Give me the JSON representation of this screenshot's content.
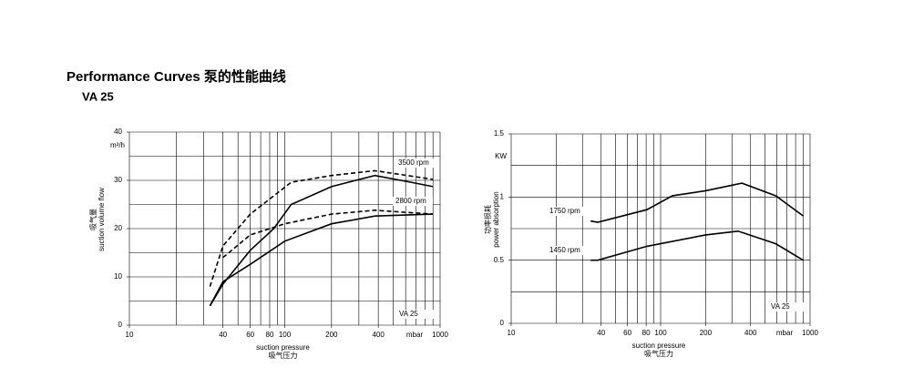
{
  "header": {
    "title": "Performance Curves 泵的性能曲线",
    "model": "VA 25"
  },
  "chart_data": [
    {
      "type": "line",
      "xlog": true,
      "grid": true,
      "color": "#000000",
      "xlim": [
        10,
        1000
      ],
      "ylim": [
        0,
        40
      ],
      "xticks": [
        10,
        40,
        60,
        80,
        100,
        200,
        400,
        1000
      ],
      "yticks": [
        0,
        10,
        20,
        30,
        40
      ],
      "xgrid": [
        10,
        20,
        30,
        40,
        50,
        60,
        70,
        80,
        90,
        100,
        200,
        300,
        400,
        500,
        600,
        700,
        800,
        900,
        1000
      ],
      "ygrid": [
        0,
        5,
        10,
        15,
        20,
        25,
        30,
        35,
        40
      ],
      "x_unit": "mbar",
      "y_unit": "m³/h",
      "xlabel": [
        "suction pressure",
        "吸气压力"
      ],
      "ylabel": [
        "吸气量",
        "suction volume flow"
      ],
      "annotations": [
        "3500 rpm",
        "2800 rpm",
        "VA 25"
      ],
      "series": [
        {
          "dash": false,
          "x": [
            33,
            40,
            60,
            85,
            110,
            200,
            380,
            650,
            900
          ],
          "values": [
            4,
            8.5,
            15.5,
            20,
            25,
            28.7,
            31,
            29.6,
            28.7
          ]
        },
        {
          "dash": true,
          "x": [
            33,
            40,
            60,
            110,
            200,
            380,
            900
          ],
          "values": [
            8,
            16.4,
            23,
            29.6,
            31,
            32,
            30.2
          ]
        },
        {
          "dash": false,
          "x": [
            33,
            40,
            60,
            100,
            200,
            380,
            900
          ],
          "values": [
            4,
            9,
            12.6,
            17.4,
            21,
            22.6,
            23
          ]
        },
        {
          "dash": true,
          "x": [
            40,
            60,
            100,
            200,
            380,
            900
          ],
          "values": [
            14,
            18.7,
            21,
            23,
            23.8,
            23
          ]
        }
      ]
    },
    {
      "type": "line",
      "xlog": true,
      "grid": true,
      "color": "#000000",
      "xlim": [
        10,
        1000
      ],
      "ylim": [
        0,
        1.5
      ],
      "xticks": [
        10,
        40,
        60,
        80,
        100,
        200,
        400,
        1000
      ],
      "yticks": [
        0,
        0.5,
        1,
        1.5
      ],
      "xgrid": [
        10,
        20,
        30,
        40,
        50,
        60,
        70,
        80,
        90,
        100,
        200,
        300,
        400,
        500,
        600,
        700,
        800,
        900,
        1000
      ],
      "ygrid": [
        0,
        0.25,
        0.5,
        0.75,
        1,
        1.25,
        1.5
      ],
      "x_unit": "mbar",
      "y_unit": "KW",
      "xlabel": [
        "suction pressure",
        "吸气压力"
      ],
      "ylabel": [
        "功率损耗",
        "power absorption"
      ],
      "annotations": [
        "1750 rpm",
        "1450 rpm",
        "VA 25"
      ],
      "series": [
        {
          "dash": false,
          "x": [
            34,
            38,
            81,
            120,
            200,
            350,
            590,
            900
          ],
          "values": [
            0.81,
            0.8,
            0.9,
            1.01,
            1.05,
            1.11,
            1.01,
            0.85
          ]
        },
        {
          "dash": false,
          "x": [
            34,
            38,
            81,
            200,
            330,
            590,
            900
          ],
          "values": [
            0.5,
            0.5,
            0.61,
            0.7,
            0.73,
            0.63,
            0.5
          ]
        }
      ]
    }
  ]
}
